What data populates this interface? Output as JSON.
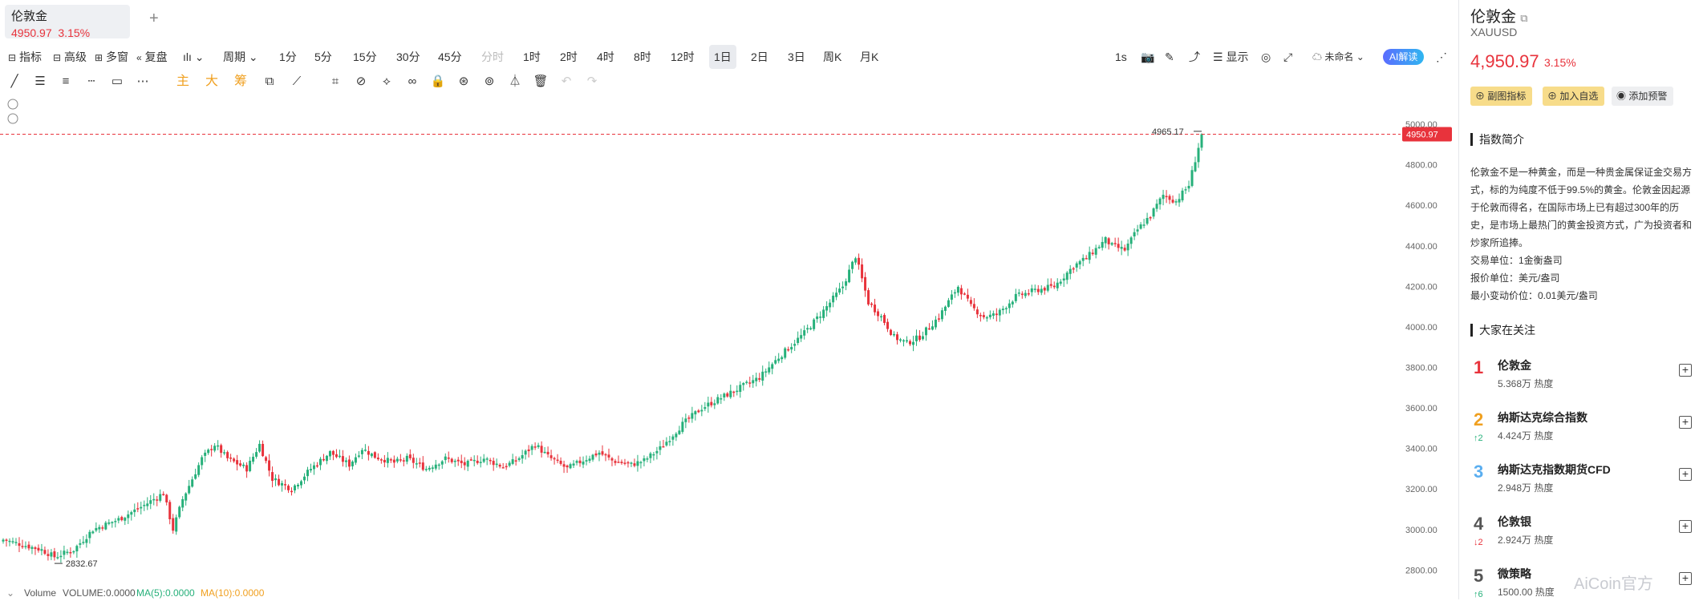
{
  "tab": {
    "name": "伦敦金",
    "price": "4950.97",
    "change": "3.15%",
    "add": "+"
  },
  "toolbar": {
    "indicator": "指标",
    "advanced": "高级",
    "multi": "多窗",
    "replay": "复盘",
    "period": "周期",
    "intervals": [
      "1分",
      "5分",
      "15分",
      "30分",
      "45分",
      "分时",
      "1时",
      "2时",
      "4时",
      "8时",
      "12时",
      "1日",
      "2日",
      "3日",
      "周K",
      "月K"
    ],
    "selected": "1日",
    "disabled": "分时",
    "seconds": "1s",
    "display": "显示",
    "unnamed": "未命名",
    "ai": "AI解读"
  },
  "drawtools": {
    "main": "主",
    "big": "大",
    "chip": "筹"
  },
  "chart_data": {
    "type": "candlestick",
    "ylim": [
      2750,
      5020
    ],
    "yticks": [
      "5000.00",
      "4800.00",
      "4600.00",
      "4400.00",
      "4200.00",
      "4000.00",
      "3800.00",
      "3600.00",
      "3400.00",
      "3200.00",
      "3000.00",
      "2800.00"
    ],
    "last_price": "4950.97",
    "high_label": "4965.17",
    "low_label": "2832.67",
    "up_color": "#26b07a",
    "down_color": "#e8333c",
    "key_closes": [
      [
        0,
        2950
      ],
      [
        12,
        2900
      ],
      [
        16,
        2865
      ],
      [
        22,
        2900
      ],
      [
        28,
        3000
      ],
      [
        36,
        3050
      ],
      [
        44,
        3120
      ],
      [
        50,
        3180
      ],
      [
        53,
        3000
      ],
      [
        56,
        3150
      ],
      [
        62,
        3350
      ],
      [
        66,
        3420
      ],
      [
        70,
        3350
      ],
      [
        76,
        3300
      ],
      [
        80,
        3420
      ],
      [
        84,
        3250
      ],
      [
        90,
        3200
      ],
      [
        96,
        3300
      ],
      [
        102,
        3380
      ],
      [
        108,
        3320
      ],
      [
        112,
        3400
      ],
      [
        116,
        3360
      ],
      [
        122,
        3330
      ],
      [
        126,
        3350
      ],
      [
        132,
        3300
      ],
      [
        138,
        3350
      ],
      [
        144,
        3320
      ],
      [
        150,
        3350
      ],
      [
        156,
        3310
      ],
      [
        160,
        3340
      ],
      [
        166,
        3420
      ],
      [
        170,
        3360
      ],
      [
        176,
        3300
      ],
      [
        182,
        3350
      ],
      [
        186,
        3380
      ],
      [
        190,
        3340
      ],
      [
        196,
        3320
      ],
      [
        200,
        3340
      ],
      [
        205,
        3400
      ],
      [
        212,
        3520
      ],
      [
        218,
        3600
      ],
      [
        224,
        3650
      ],
      [
        230,
        3700
      ],
      [
        236,
        3750
      ],
      [
        242,
        3850
      ],
      [
        250,
        3970
      ],
      [
        256,
        4080
      ],
      [
        262,
        4200
      ],
      [
        266,
        4350
      ],
      [
        270,
        4120
      ],
      [
        274,
        4050
      ],
      [
        278,
        3950
      ],
      [
        282,
        3920
      ],
      [
        286,
        3950
      ],
      [
        292,
        4050
      ],
      [
        298,
        4200
      ],
      [
        302,
        4100
      ],
      [
        306,
        4050
      ],
      [
        310,
        4060
      ],
      [
        316,
        4150
      ],
      [
        322,
        4180
      ],
      [
        328,
        4200
      ],
      [
        334,
        4300
      ],
      [
        338,
        4340
      ],
      [
        344,
        4430
      ],
      [
        346,
        4400
      ],
      [
        350,
        4380
      ],
      [
        354,
        4480
      ],
      [
        358,
        4550
      ],
      [
        362,
        4650
      ],
      [
        366,
        4620
      ],
      [
        370,
        4700
      ],
      [
        374,
        4950
      ]
    ]
  },
  "volume": {
    "label": "Volume",
    "volume": "VOLUME:0.0000",
    "ma5": "MA(5):0.0000",
    "ma10": "MA(10):0.0000"
  },
  "panel": {
    "name": "伦敦金",
    "code": "XAUUSD",
    "price": "4,950.97",
    "change": "3.15%",
    "btn_sub": "副图指标",
    "btn_fav": "加入自选",
    "btn_alert": "添加预警",
    "intro_title": "指数简介",
    "intro": "伦敦金不是一种黄金，而是一种贵金属保证金交易方式，标的为纯度不低于99.5%的黄金。伦敦金因起源于伦敦而得名，在国际市场上已有超过300年的历史，是市场上最热门的黄金投资方式，广为投资者和炒家所追捧。",
    "unit": "交易单位：1金衡盎司",
    "quote_unit": "报价单位：美元/盎司",
    "tick": "最小变动价位：0.01美元/盎司",
    "hot_title": "大家在关注",
    "hot": [
      {
        "rank": "1",
        "name": "伦敦金",
        "heat": "5.368万 热度",
        "chg": "",
        "color": "#e8333c"
      },
      {
        "rank": "2",
        "name": "纳斯达克综合指数",
        "heat": "4.424万 热度",
        "chg": "↑2",
        "color": "#f0a020"
      },
      {
        "rank": "3",
        "name": "纳斯达克指数期货CFD",
        "heat": "2.948万 热度",
        "chg": "",
        "color": "#5aaef0"
      },
      {
        "rank": "4",
        "name": "伦敦银",
        "heat": "2.924万 热度",
        "chg": "↓2",
        "color": "#555555"
      },
      {
        "rank": "5",
        "name": "微策略",
        "heat": "1500.00 热度",
        "chg": "↑6",
        "color": "#555555"
      }
    ]
  },
  "watermark": "AiCoin官方"
}
